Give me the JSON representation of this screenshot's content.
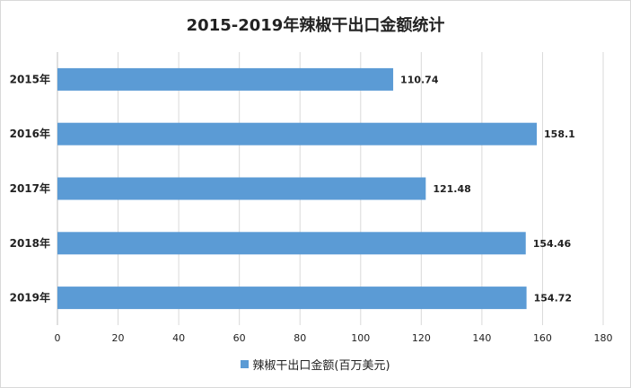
{
  "chart_data": {
    "type": "bar",
    "orientation": "horizontal",
    "title": "2015-2019年辣椒干出口金额统计",
    "xlabel": "",
    "ylabel": "",
    "categories": [
      "2015年",
      "2016年",
      "2017年",
      "2018年",
      "2019年"
    ],
    "series": [
      {
        "name": "辣椒干出口金额(百万美元)",
        "values": [
          110.74,
          158.1,
          121.48,
          154.46,
          154.72
        ],
        "data_labels": [
          "110.74",
          "158.1",
          "121.48",
          "154.46",
          "154.72"
        ],
        "color": "#5b9bd5"
      }
    ],
    "xlim": [
      0,
      180
    ],
    "xticks": [
      0,
      20,
      40,
      60,
      80,
      100,
      120,
      140,
      160,
      180
    ],
    "xtick_labels": [
      "0",
      "20",
      "40",
      "60",
      "80",
      "100",
      "120",
      "140",
      "160",
      "180"
    ],
    "grid": "vertical",
    "legend_position": "bottom"
  },
  "colors": {
    "bar": "#5b9bd5",
    "grid": "#d9d9d9",
    "text": "#222222"
  }
}
